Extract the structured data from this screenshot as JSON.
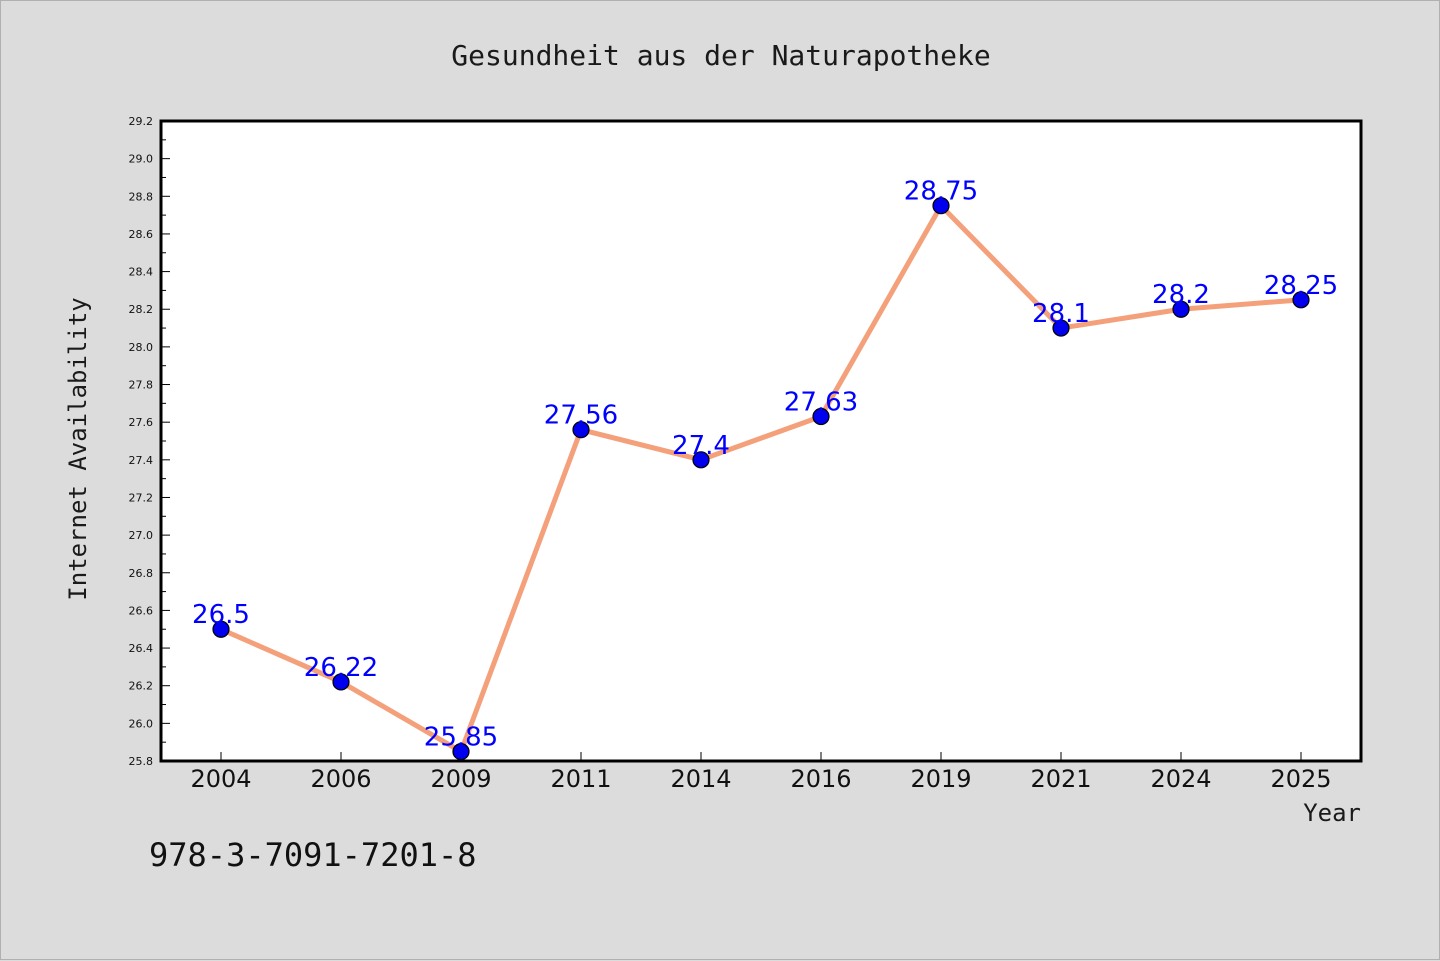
{
  "chart_data": {
    "type": "line",
    "title": "Gesundheit aus der Naturapotheke",
    "xlabel": "Year",
    "ylabel": "Internet Availability",
    "categories": [
      "2004",
      "2006",
      "2009",
      "2011",
      "2014",
      "2016",
      "2019",
      "2021",
      "2024",
      "2025"
    ],
    "series": [
      {
        "values": [
          26.5,
          26.22,
          25.85,
          27.56,
          27.4,
          27.63,
          28.75,
          28.1,
          28.2,
          28.25
        ],
        "labels": [
          "26.5",
          "26.22",
          "25.85",
          "27.56",
          "27.4",
          "27.63",
          "28.75",
          "28.1",
          "28.2",
          "28.25"
        ],
        "line_color": "#f4a07a",
        "marker_color": "#0000ee"
      }
    ],
    "ylim": [
      25.8,
      29.2
    ],
    "yticks": [
      "25.8",
      "26.0",
      "26.2",
      "26.4",
      "26.6",
      "26.8",
      "27.0",
      "27.2",
      "27.4",
      "27.6",
      "27.8",
      "28.0",
      "28.2",
      "28.4",
      "28.6",
      "28.8",
      "29.0",
      "29.2"
    ],
    "grid": false,
    "label_color": "#0000ff"
  },
  "footer": {
    "isbn": "978-3-7091-7201-8"
  }
}
